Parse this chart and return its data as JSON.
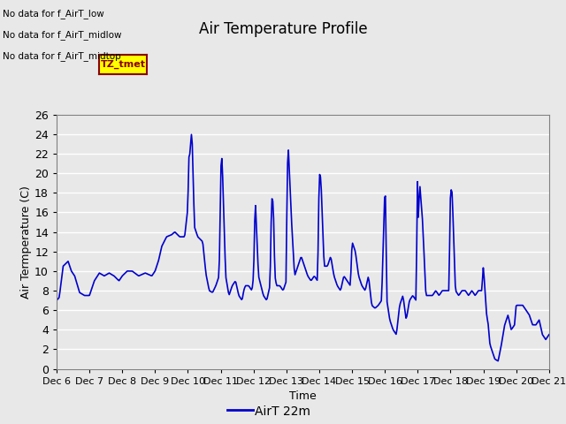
{
  "title": "Air Temperature Profile",
  "xlabel": "Time",
  "ylabel": "Air Termperature (C)",
  "ylim": [
    0,
    26
  ],
  "yticks": [
    0,
    2,
    4,
    6,
    8,
    10,
    12,
    14,
    16,
    18,
    20,
    22,
    24,
    26
  ],
  "line_color": "#0000CC",
  "line_width": 1.2,
  "bg_color": "#E8E8E8",
  "grid_color": "#FFFFFF",
  "legend_label": "AirT 22m",
  "annotations": [
    "No data for f_AirT_low",
    "No data for f_AirT_midlow",
    "No data for f_AirT_midtop"
  ],
  "tz_label": "TZ_tmet",
  "x_tick_labels": [
    "Dec 6",
    "Dec 7",
    "Dec 8",
    "Dec 9",
    "Dec 10",
    "Dec 11",
    "Dec 12",
    "Dec 13",
    "Dec 14",
    "Dec 15",
    "Dec 16",
    "Dec 17",
    "Dec 18",
    "Dec 19",
    "Dec 20",
    "Dec 21"
  ],
  "key_x": [
    0.0,
    0.08,
    0.2,
    0.35,
    0.45,
    0.55,
    0.7,
    0.85,
    1.0,
    1.15,
    1.3,
    1.45,
    1.6,
    1.75,
    1.9,
    2.0,
    2.15,
    2.3,
    2.5,
    2.7,
    2.9,
    3.0,
    3.1,
    3.2,
    3.35,
    3.5,
    3.6,
    3.75,
    3.9,
    4.0,
    4.02,
    4.06,
    4.12,
    4.2,
    4.3,
    4.45,
    4.55,
    4.65,
    4.75,
    4.85,
    4.95,
    5.0,
    5.02,
    5.06,
    5.15,
    5.25,
    5.35,
    5.45,
    5.55,
    5.65,
    5.7,
    5.75,
    5.85,
    5.95,
    6.0,
    6.05,
    6.15,
    6.3,
    6.4,
    6.5,
    6.55,
    6.6,
    6.65,
    6.7,
    6.8,
    6.9,
    7.0,
    7.02,
    7.06,
    7.15,
    7.25,
    7.35,
    7.45,
    7.55,
    7.65,
    7.75,
    7.85,
    7.95,
    8.0,
    8.05,
    8.15,
    8.25,
    8.35,
    8.45,
    8.55,
    8.65,
    8.75,
    8.85,
    8.95,
    9.0,
    9.1,
    9.2,
    9.3,
    9.4,
    9.5,
    9.6,
    9.7,
    9.8,
    9.9,
    10.0,
    10.02,
    10.06,
    10.15,
    10.25,
    10.35,
    10.45,
    10.55,
    10.65,
    10.75,
    10.85,
    10.95,
    11.0,
    11.02,
    11.06,
    11.15,
    11.25,
    11.35,
    11.45,
    11.55,
    11.65,
    11.75,
    11.85,
    11.95,
    12.0,
    12.05,
    12.15,
    12.25,
    12.35,
    12.45,
    12.55,
    12.65,
    12.75,
    12.85,
    12.95,
    13.0,
    13.1,
    13.15,
    13.2,
    13.25,
    13.35,
    13.45,
    13.55,
    13.65,
    13.75,
    13.85,
    13.95,
    14.0,
    14.1,
    14.2,
    14.3,
    14.4,
    14.5,
    14.6,
    14.7,
    14.8,
    14.9,
    15.0
  ],
  "key_y": [
    7.0,
    7.3,
    10.5,
    11.0,
    10.0,
    9.5,
    7.8,
    7.5,
    7.5,
    9.0,
    9.8,
    9.5,
    9.8,
    9.5,
    9.0,
    9.5,
    10.0,
    10.0,
    9.5,
    9.8,
    9.5,
    10.0,
    11.0,
    12.5,
    13.5,
    13.7,
    14.0,
    13.5,
    13.5,
    16.5,
    21.5,
    22.0,
    24.5,
    14.5,
    13.5,
    13.0,
    9.7,
    8.0,
    7.8,
    8.5,
    9.5,
    19.5,
    22.5,
    19.5,
    9.5,
    7.5,
    8.5,
    9.0,
    7.5,
    7.0,
    8.0,
    8.5,
    8.5,
    8.0,
    9.5,
    17.5,
    9.5,
    7.5,
    7.0,
    8.5,
    17.5,
    17.0,
    9.5,
    8.5,
    8.5,
    8.0,
    9.0,
    20.0,
    22.5,
    15.5,
    9.5,
    10.5,
    11.5,
    10.5,
    9.5,
    9.0,
    9.5,
    9.0,
    20.0,
    19.5,
    10.5,
    10.5,
    11.5,
    9.5,
    8.5,
    8.0,
    9.5,
    9.0,
    8.5,
    13.0,
    12.0,
    9.5,
    8.5,
    8.0,
    9.5,
    6.5,
    6.2,
    6.5,
    7.0,
    18.5,
    17.5,
    7.0,
    5.0,
    4.0,
    3.5,
    6.5,
    7.5,
    5.0,
    7.0,
    7.5,
    7.0,
    21.0,
    15.0,
    19.0,
    15.0,
    7.5,
    7.5,
    7.5,
    8.0,
    7.5,
    8.0,
    8.0,
    8.0,
    18.5,
    18.0,
    8.0,
    7.5,
    8.0,
    8.0,
    7.5,
    8.0,
    7.5,
    8.0,
    8.0,
    10.5,
    5.5,
    4.5,
    2.5,
    2.0,
    1.0,
    0.8,
    2.5,
    4.5,
    5.5,
    4.0,
    4.5,
    6.5,
    6.5,
    6.5,
    6.0,
    5.5,
    4.5,
    4.5,
    5.0,
    3.5,
    3.0,
    3.5
  ]
}
